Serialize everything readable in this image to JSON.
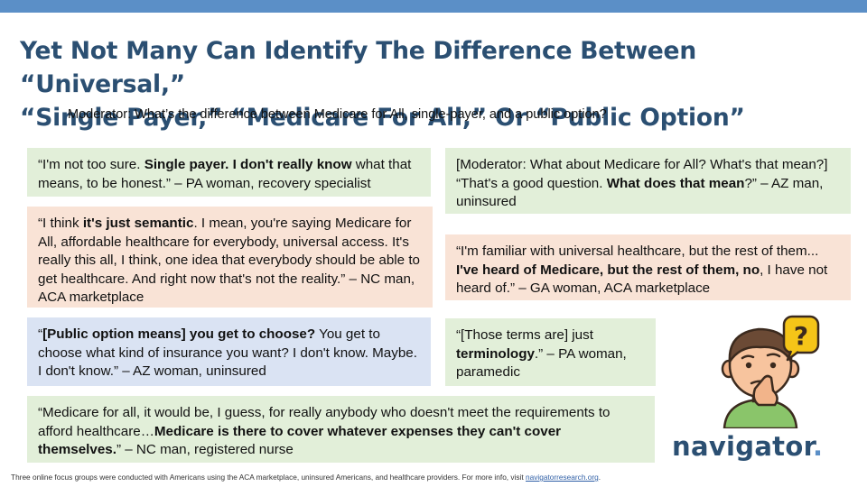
{
  "header": {
    "title_line1": "Yet Not Many Can Identify The Difference Between “Universal,”",
    "title_line2": "“Single Payer,” “Medicare For All,” Or “Public Option”",
    "subtitle": "Moderator: What’s the difference between Medicare for All, single-payer, and a public option?"
  },
  "quotes": {
    "q1": {
      "p1": "“I'm not too sure. ",
      "b1": "Single payer. I don't really know",
      "p2": " what that means, to be honest.” – PA woman, recovery specialist"
    },
    "q2": {
      "p1": "“I think ",
      "b1": "it's just semantic",
      "p2": ". I mean, you're saying Medicare for All, affordable healthcare for everybody, universal access. It's really this all, I think, one idea that everybody should be able to get healthcare. And right now that's not the reality.” – NC man, ACA marketplace"
    },
    "q3": {
      "p1": "“",
      "b1": "[Public option means] you get to choose?",
      "p2": " You get to choose what kind of insurance you want? I don't know. Maybe. I don't know.” – AZ woman, uninsured"
    },
    "q4": {
      "p1": "“Medicare for all, it would be, I guess, for really anybody who doesn't meet the requirements to afford healthcare…",
      "b1": "Medicare is there to cover whatever expenses they can't cover themselves.",
      "p2": "” – NC man, registered nurse"
    },
    "q5": {
      "p1": "[Moderator: What about Medicare for All? What's that mean?] “That's a good question. ",
      "b1": "What does that mean",
      "p2": "?” – AZ man, uninsured"
    },
    "q6": {
      "p1": "“I'm familiar with universal healthcare, but the rest of them... ",
      "b1": "I've heard of Medicare, but the rest of them, no",
      "p2": ", I have not heard of.” – GA woman, ACA marketplace"
    },
    "q7": {
      "p1": "“[Those terms are] just ",
      "b1": "terminology",
      "p2": ".” – PA woman, paramedic"
    }
  },
  "logo": {
    "text": "navigator",
    "dot": "."
  },
  "footer": {
    "text": "Three online focus groups were conducted with Americans using the ACA marketplace, uninsured Americans, and healthcare providers. For more info, visit ",
    "link": "navigatorresearch.org",
    "end": "."
  },
  "colors": {
    "accent": "#5b8fc7",
    "title": "#2b4f72",
    "green_box": "#e2efd9",
    "peach_box": "#f9e3d6",
    "blue_box": "#dae3f3",
    "illustration_bubble": "#f5c518"
  },
  "icons": {
    "illustration": "confused-person-question-icon"
  }
}
